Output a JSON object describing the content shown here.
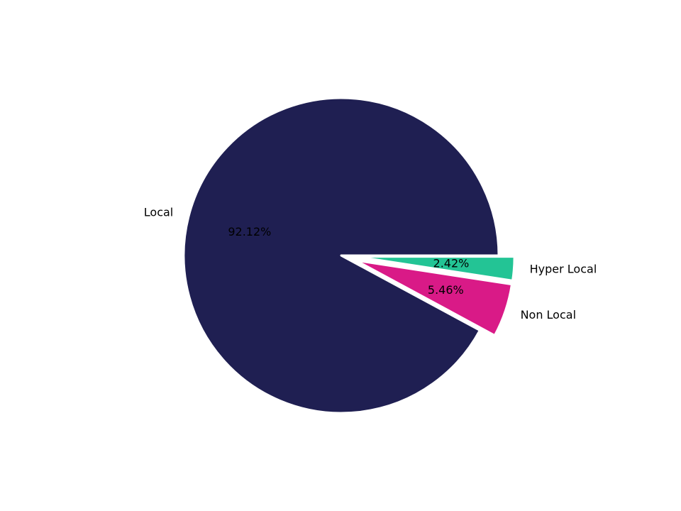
{
  "chart_data": {
    "type": "pie",
    "categories": [
      "Hyper Local",
      "Non Local",
      "Local"
    ],
    "values": [
      2.42,
      5.46,
      92.12
    ],
    "value_labels": [
      "2.42%",
      "5.46%",
      "92.12%"
    ],
    "colors": [
      "#23c495",
      "#d91a87",
      "#1f1f52"
    ]
  }
}
